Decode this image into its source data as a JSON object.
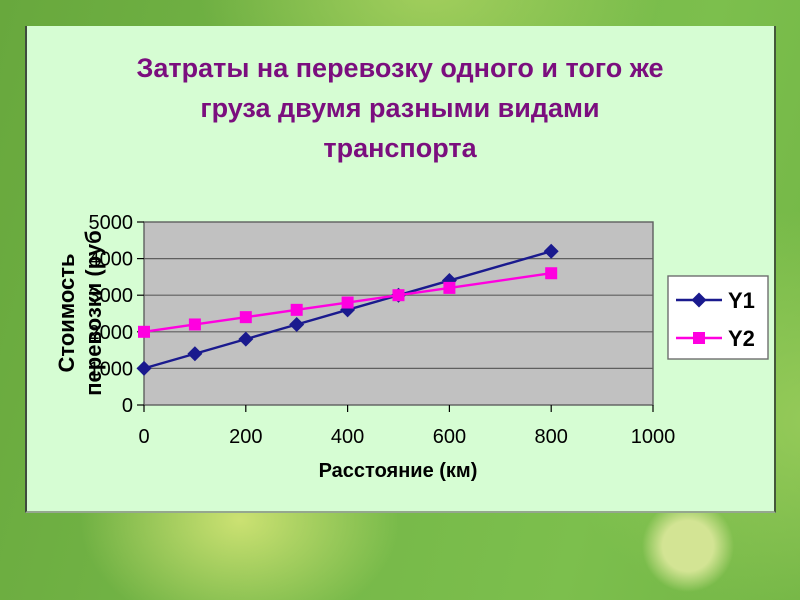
{
  "slide": {
    "title_lines": [
      "Затраты на перевозку одного и того же",
      "груза двумя разными видами",
      "транспорта"
    ],
    "title_color": "#7b0e7e",
    "panel_color": "#d6fdd3"
  },
  "chart_data": {
    "type": "line",
    "title": "",
    "x": [
      0,
      100,
      200,
      300,
      400,
      500,
      600,
      800
    ],
    "series": [
      {
        "name": "Y1",
        "color": "#1a1a8e",
        "marker": "diamond",
        "values": [
          1000,
          1400,
          1800,
          2200,
          2600,
          3000,
          3400,
          4200
        ]
      },
      {
        "name": "Y2",
        "color": "#ff00e0",
        "marker": "square",
        "values": [
          2000,
          2200,
          2400,
          2600,
          2800,
          3000,
          3200,
          3600
        ]
      }
    ],
    "xlabel": "Расстояние (км)",
    "ylabel": "Стоимость перевозки (руб",
    "ylabel_lines": [
      "Стоимость",
      "перевозки (руб"
    ],
    "x_ticks": [
      0,
      200,
      400,
      600,
      800,
      1000
    ],
    "y_ticks": [
      0,
      1000,
      2000,
      3000,
      4000,
      5000
    ],
    "xlim": [
      0,
      1000
    ],
    "ylim": [
      0,
      5000
    ],
    "grid": "horizontal",
    "legend_position": "right",
    "plot_bg": "#c1c1c1",
    "gridline_color": "#5f5f5f",
    "legend_border_color": "#6e6e6e",
    "legend_bg": "#ffffff"
  }
}
